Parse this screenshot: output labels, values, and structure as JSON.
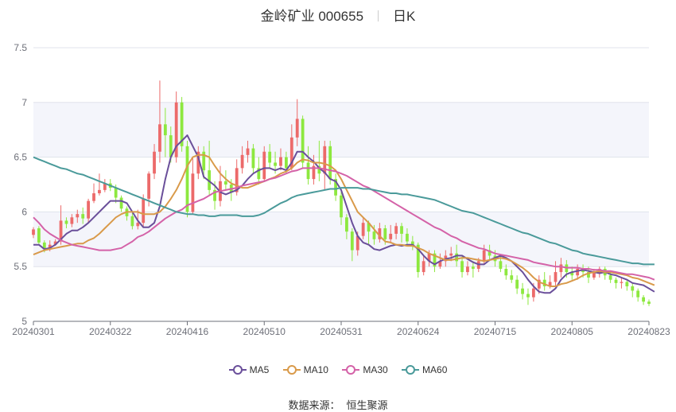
{
  "title": {
    "name": "金岭矿业 000655",
    "period": "日K"
  },
  "source": {
    "label": "数据来源：",
    "value": "恒生聚源"
  },
  "colors": {
    "up": "#ec6a6a",
    "down": "#8de83f",
    "MA5": "#6a4f9a",
    "MA10": "#d99a4a",
    "MA30": "#d462a8",
    "MA60": "#4a9a9a",
    "band": "#f4f5fb",
    "grid": "#e0e3ec",
    "axis": "#6e7079"
  },
  "chart_data": {
    "type": "candlestick",
    "xlabels": [
      "20240301",
      "20240322",
      "20240416",
      "20240510",
      "20240531",
      "20240624",
      "20240715",
      "20240805",
      "20240823"
    ],
    "xlabel_index": [
      0,
      14,
      28,
      42,
      56,
      70,
      84,
      98,
      112
    ],
    "y_ticks": [
      "5",
      "5.5",
      "6",
      "6.5",
      "7",
      "7.5"
    ],
    "ylim": [
      5,
      7.5
    ],
    "grid": true,
    "legend": [
      "MA5",
      "MA10",
      "MA30",
      "MA60"
    ],
    "legend_position": "bottom-center",
    "ohlc": [
      [
        5.79,
        5.84,
        5.76,
        5.86
      ],
      [
        5.85,
        5.72,
        5.7,
        5.87
      ],
      [
        5.72,
        5.66,
        5.63,
        5.74
      ],
      [
        5.66,
        5.7,
        5.64,
        5.74
      ],
      [
        5.7,
        5.73,
        5.69,
        5.75
      ],
      [
        5.73,
        5.92,
        5.7,
        6.06
      ],
      [
        5.92,
        5.89,
        5.85,
        5.95
      ],
      [
        5.89,
        5.95,
        5.86,
        5.98
      ],
      [
        5.95,
        5.98,
        5.9,
        6.02
      ],
      [
        5.98,
        5.94,
        5.89,
        6.04
      ],
      [
        5.94,
        6.1,
        5.9,
        6.12
      ],
      [
        6.1,
        6.17,
        6.08,
        6.26
      ],
      [
        6.17,
        6.2,
        6.15,
        6.35
      ],
      [
        6.2,
        6.26,
        6.18,
        6.3
      ],
      [
        6.26,
        6.22,
        6.19,
        6.3
      ],
      [
        6.22,
        6.13,
        6.08,
        6.25
      ],
      [
        6.13,
        6.03,
        6.0,
        6.15
      ],
      [
        6.03,
        5.96,
        5.92,
        6.05
      ],
      [
        5.96,
        5.87,
        5.84,
        5.99
      ],
      [
        5.87,
        5.9,
        5.84,
        6.02
      ],
      [
        5.9,
        6.12,
        5.86,
        6.16
      ],
      [
        6.12,
        6.35,
        6.05,
        6.37
      ],
      [
        6.35,
        6.55,
        6.3,
        6.62
      ],
      [
        6.55,
        6.8,
        6.45,
        7.2
      ],
      [
        6.8,
        6.7,
        6.5,
        6.95
      ],
      [
        6.7,
        6.5,
        6.45,
        6.78
      ],
      [
        6.5,
        7.0,
        6.45,
        7.1
      ],
      [
        7.0,
        6.6,
        6.55,
        7.05
      ],
      [
        6.6,
        6.0,
        5.95,
        6.65
      ],
      [
        6.0,
        6.35,
        5.98,
        6.5
      ],
      [
        6.35,
        6.55,
        6.3,
        6.6
      ],
      [
        6.55,
        6.38,
        6.3,
        6.6
      ],
      [
        6.38,
        6.2,
        6.15,
        6.65
      ],
      [
        6.2,
        6.1,
        6.02,
        6.28
      ],
      [
        6.1,
        6.28,
        6.05,
        6.42
      ],
      [
        6.28,
        6.25,
        6.2,
        6.38
      ],
      [
        6.25,
        6.18,
        6.1,
        6.3
      ],
      [
        6.18,
        6.4,
        6.15,
        6.48
      ],
      [
        6.4,
        6.52,
        6.35,
        6.6
      ],
      [
        6.52,
        6.58,
        6.45,
        6.65
      ],
      [
        6.58,
        6.4,
        6.35,
        6.62
      ],
      [
        6.4,
        6.3,
        6.25,
        6.5
      ],
      [
        6.3,
        6.55,
        6.28,
        6.6
      ],
      [
        6.55,
        6.45,
        6.4,
        6.62
      ],
      [
        6.45,
        6.42,
        6.35,
        6.55
      ],
      [
        6.42,
        6.5,
        6.38,
        6.58
      ],
      [
        6.5,
        6.4,
        6.35,
        6.55
      ],
      [
        6.4,
        6.68,
        6.38,
        6.8
      ],
      [
        6.68,
        6.85,
        6.6,
        7.03
      ],
      [
        6.85,
        6.45,
        6.4,
        6.88
      ],
      [
        6.45,
        6.3,
        6.25,
        6.6
      ],
      [
        6.3,
        6.42,
        6.25,
        6.52
      ],
      [
        6.42,
        6.35,
        6.28,
        6.65
      ],
      [
        6.35,
        6.6,
        6.2,
        6.65
      ],
      [
        6.6,
        6.3,
        6.25,
        6.65
      ],
      [
        6.3,
        6.15,
        6.1,
        6.35
      ],
      [
        6.15,
        5.95,
        5.88,
        6.2
      ],
      [
        5.95,
        5.82,
        5.75,
        5.98
      ],
      [
        5.82,
        5.65,
        5.55,
        5.85
      ],
      [
        5.65,
        5.78,
        5.6,
        5.82
      ],
      [
        5.78,
        5.9,
        5.75,
        5.95
      ],
      [
        5.9,
        5.82,
        5.7,
        5.92
      ],
      [
        5.82,
        5.75,
        5.7,
        5.88
      ],
      [
        5.75,
        5.85,
        5.72,
        5.9
      ],
      [
        5.85,
        5.75,
        5.7,
        5.88
      ],
      [
        5.75,
        5.8,
        5.72,
        5.88
      ],
      [
        5.8,
        5.87,
        5.75,
        5.9
      ],
      [
        5.87,
        5.8,
        5.72,
        5.9
      ],
      [
        5.8,
        5.73,
        5.7,
        5.85
      ],
      [
        5.73,
        5.7,
        5.65,
        5.78
      ],
      [
        5.7,
        5.45,
        5.4,
        5.72
      ],
      [
        5.45,
        5.55,
        5.42,
        5.6
      ],
      [
        5.55,
        5.62,
        5.5,
        5.65
      ],
      [
        5.62,
        5.5,
        5.45,
        5.65
      ],
      [
        5.5,
        5.55,
        5.48,
        5.62
      ],
      [
        5.55,
        5.6,
        5.5,
        5.65
      ],
      [
        5.6,
        5.62,
        5.55,
        5.68
      ],
      [
        5.62,
        5.55,
        5.5,
        5.7
      ],
      [
        5.55,
        5.45,
        5.4,
        5.6
      ],
      [
        5.45,
        5.5,
        5.42,
        5.55
      ],
      [
        5.5,
        5.48,
        5.4,
        5.55
      ],
      [
        5.48,
        5.55,
        5.45,
        5.58
      ],
      [
        5.55,
        5.65,
        5.52,
        5.7
      ],
      [
        5.65,
        5.6,
        5.55,
        5.7
      ],
      [
        5.6,
        5.55,
        5.5,
        5.65
      ],
      [
        5.55,
        5.48,
        5.45,
        5.6
      ],
      [
        5.48,
        5.42,
        5.38,
        5.52
      ],
      [
        5.42,
        5.38,
        5.35,
        5.47
      ],
      [
        5.38,
        5.3,
        5.25,
        5.42
      ],
      [
        5.3,
        5.25,
        5.2,
        5.35
      ],
      [
        5.25,
        5.22,
        5.15,
        5.3
      ],
      [
        5.22,
        5.3,
        5.18,
        5.35
      ],
      [
        5.3,
        5.38,
        5.25,
        5.42
      ],
      [
        5.38,
        5.32,
        5.28,
        5.45
      ],
      [
        5.32,
        5.36,
        5.3,
        5.42
      ],
      [
        5.36,
        5.45,
        5.32,
        5.55
      ],
      [
        5.45,
        5.52,
        5.4,
        5.58
      ],
      [
        5.52,
        5.45,
        5.4,
        5.56
      ],
      [
        5.45,
        5.42,
        5.38,
        5.5
      ],
      [
        5.42,
        5.48,
        5.38,
        5.52
      ],
      [
        5.48,
        5.45,
        5.4,
        5.52
      ],
      [
        5.45,
        5.4,
        5.35,
        5.5
      ],
      [
        5.4,
        5.44,
        5.38,
        5.48
      ],
      [
        5.44,
        5.48,
        5.4,
        5.5
      ],
      [
        5.48,
        5.42,
        5.38,
        5.5
      ],
      [
        5.42,
        5.38,
        5.35,
        5.46
      ],
      [
        5.38,
        5.35,
        5.3,
        5.4
      ],
      [
        5.35,
        5.36,
        5.3,
        5.4
      ],
      [
        5.36,
        5.32,
        5.28,
        5.38
      ],
      [
        5.32,
        5.28,
        5.22,
        5.35
      ],
      [
        5.28,
        5.22,
        5.18,
        5.3
      ],
      [
        5.22,
        5.18,
        5.15,
        5.24
      ],
      [
        5.18,
        5.16,
        5.14,
        5.2
      ]
    ],
    "ma": {
      "MA5": [
        5.7,
        5.7,
        5.66,
        5.67,
        5.7,
        5.75,
        5.8,
        5.83,
        5.83,
        5.86,
        5.9,
        5.95,
        6.0,
        6.05,
        6.1,
        6.1,
        6.1,
        6.08,
        6.0,
        5.92,
        5.86,
        5.86,
        5.9,
        6.05,
        6.3,
        6.5,
        6.6,
        6.65,
        6.7,
        6.6,
        6.5,
        6.32,
        6.28,
        6.24,
        6.18,
        6.16,
        6.18,
        6.2,
        6.24,
        6.3,
        6.35,
        6.38,
        6.4,
        6.4,
        6.38,
        6.4,
        6.38,
        6.45,
        6.55,
        6.55,
        6.5,
        6.46,
        6.4,
        6.36,
        6.3,
        6.28,
        6.2,
        6.05,
        5.9,
        5.78,
        5.72,
        5.7,
        5.66,
        5.65,
        5.67,
        5.69,
        5.7,
        5.69,
        5.7,
        5.7,
        5.66,
        5.6,
        5.55,
        5.52,
        5.55,
        5.57,
        5.58,
        5.6,
        5.6,
        5.57,
        5.54,
        5.52,
        5.52,
        5.56,
        5.58,
        5.6,
        5.58,
        5.55,
        5.5,
        5.45,
        5.38,
        5.32,
        5.27,
        5.26,
        5.26,
        5.3,
        5.38,
        5.43,
        5.45,
        5.46,
        5.47,
        5.46,
        5.45,
        5.44,
        5.45,
        5.43,
        5.42,
        5.4,
        5.38,
        5.35,
        5.34,
        5.33,
        5.3,
        5.27
      ],
      "MA10": [
        5.61,
        5.63,
        5.65,
        5.66,
        5.67,
        5.68,
        5.69,
        5.7,
        5.71,
        5.71,
        5.74,
        5.76,
        5.8,
        5.85,
        5.9,
        5.95,
        5.98,
        6.0,
        6.0,
        6.0,
        5.98,
        5.98,
        5.98,
        6.0,
        6.05,
        6.12,
        6.2,
        6.3,
        6.42,
        6.5,
        6.52,
        6.52,
        6.5,
        6.42,
        6.35,
        6.3,
        6.26,
        6.24,
        6.22,
        6.22,
        6.24,
        6.26,
        6.28,
        6.3,
        6.32,
        6.35,
        6.37,
        6.4,
        6.45,
        6.48,
        6.47,
        6.45,
        6.45,
        6.44,
        6.42,
        6.38,
        6.3,
        6.2,
        6.1,
        6.0,
        5.95,
        5.9,
        5.84,
        5.78,
        5.73,
        5.72,
        5.7,
        5.7,
        5.69,
        5.69,
        5.67,
        5.65,
        5.62,
        5.6,
        5.58,
        5.56,
        5.56,
        5.57,
        5.58,
        5.58,
        5.57,
        5.56,
        5.55,
        5.56,
        5.57,
        5.58,
        5.57,
        5.55,
        5.52,
        5.49,
        5.45,
        5.4,
        5.36,
        5.34,
        5.32,
        5.32,
        5.34,
        5.35,
        5.37,
        5.39,
        5.42,
        5.44,
        5.45,
        5.46,
        5.45,
        5.45,
        5.44,
        5.43,
        5.42,
        5.4,
        5.39,
        5.37,
        5.35,
        5.33
      ],
      "MA30": [
        5.95,
        5.9,
        5.84,
        5.8,
        5.77,
        5.74,
        5.72,
        5.7,
        5.69,
        5.68,
        5.67,
        5.66,
        5.65,
        5.65,
        5.65,
        5.66,
        5.67,
        5.7,
        5.73,
        5.77,
        5.79,
        5.82,
        5.86,
        5.9,
        5.94,
        5.97,
        6.0,
        6.02,
        6.06,
        6.08,
        6.1,
        6.12,
        6.15,
        6.18,
        6.19,
        6.2,
        6.21,
        6.22,
        6.24,
        6.25,
        6.26,
        6.27,
        6.28,
        6.3,
        6.31,
        6.33,
        6.35,
        6.37,
        6.38,
        6.4,
        6.4,
        6.4,
        6.4,
        6.39,
        6.38,
        6.37,
        6.35,
        6.33,
        6.3,
        6.27,
        6.24,
        6.22,
        6.19,
        6.16,
        6.13,
        6.1,
        6.07,
        6.04,
        6.01,
        5.98,
        5.95,
        5.92,
        5.89,
        5.86,
        5.84,
        5.81,
        5.78,
        5.76,
        5.73,
        5.71,
        5.69,
        5.67,
        5.66,
        5.64,
        5.62,
        5.61,
        5.6,
        5.59,
        5.58,
        5.57,
        5.56,
        5.54,
        5.53,
        5.52,
        5.51,
        5.5,
        5.5,
        5.49,
        5.49,
        5.49,
        5.48,
        5.48,
        5.47,
        5.47,
        5.46,
        5.46,
        5.45,
        5.44,
        5.43,
        5.43,
        5.42,
        5.41,
        5.4,
        5.38
      ],
      "MA60": [
        6.5,
        6.48,
        6.46,
        6.44,
        6.42,
        6.4,
        6.39,
        6.37,
        6.35,
        6.34,
        6.32,
        6.3,
        6.28,
        6.26,
        6.24,
        6.22,
        6.2,
        6.18,
        6.16,
        6.14,
        6.12,
        6.1,
        6.08,
        6.06,
        6.04,
        6.02,
        6.0,
        5.99,
        5.98,
        5.98,
        5.97,
        5.97,
        5.96,
        5.96,
        5.97,
        5.97,
        5.97,
        5.97,
        5.96,
        5.96,
        5.96,
        5.97,
        5.99,
        6.02,
        6.05,
        6.08,
        6.1,
        6.13,
        6.15,
        6.16,
        6.17,
        6.18,
        6.19,
        6.2,
        6.21,
        6.21,
        6.22,
        6.22,
        6.22,
        6.22,
        6.21,
        6.21,
        6.2,
        6.19,
        6.18,
        6.17,
        6.17,
        6.16,
        6.16,
        6.15,
        6.14,
        6.13,
        6.12,
        6.11,
        6.09,
        6.07,
        6.05,
        6.03,
        6.01,
        6.0,
        5.99,
        5.97,
        5.95,
        5.93,
        5.91,
        5.89,
        5.87,
        5.85,
        5.83,
        5.81,
        5.8,
        5.78,
        5.76,
        5.74,
        5.72,
        5.71,
        5.69,
        5.67,
        5.65,
        5.64,
        5.62,
        5.61,
        5.6,
        5.59,
        5.58,
        5.57,
        5.56,
        5.55,
        5.54,
        5.53,
        5.53,
        5.52,
        5.52,
        5.52
      ]
    }
  }
}
